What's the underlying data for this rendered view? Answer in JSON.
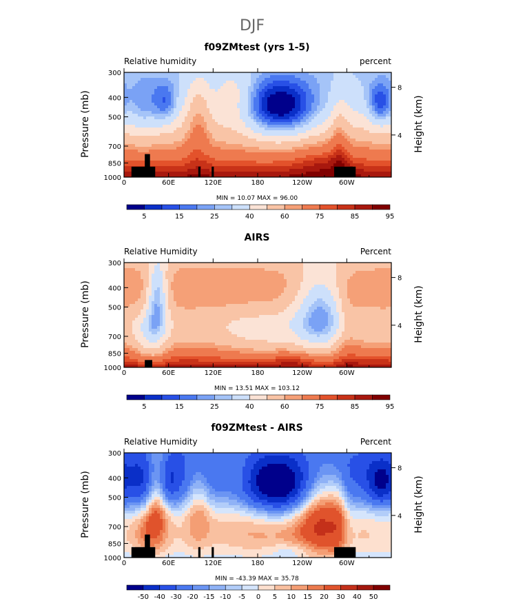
{
  "figure_title": "DJF",
  "chart_data": [
    {
      "type": "heatmap",
      "title": "f09ZMtest (yrs 1-5)",
      "left_label": "Relative humidity",
      "right_label": "percent",
      "ylabel": "Pressure (mb)",
      "y2label": "Height (km)",
      "x_ticks": [
        "0",
        "60E",
        "120E",
        "180",
        "120W",
        "60W"
      ],
      "y_ticks": [
        "300",
        "400",
        "500",
        "700",
        "850",
        "1000"
      ],
      "y2_ticks": [
        "8",
        "4"
      ],
      "stats": "MIN =  10.07   MAX =  96.00",
      "colorbar_labels": [
        "5",
        "15",
        "25",
        "40",
        "60",
        "75",
        "85",
        "95"
      ],
      "colorbar_colors": [
        "#00008b",
        "#0a2fc8",
        "#2850e6",
        "#4a78f0",
        "#7aa2f5",
        "#a5c4f8",
        "#cde0fb",
        "#fbe3d6",
        "#f9c4a6",
        "#f5a077",
        "#ee7a4f",
        "#e3522b",
        "#c83218",
        "#a8180e",
        "#800000"
      ],
      "ylim": [
        1000,
        300
      ],
      "xlim": [
        0,
        360
      ],
      "field": "rh_model"
    },
    {
      "type": "heatmap",
      "title": "AIRS",
      "left_label": "Relative Humidity",
      "right_label": "Percent",
      "ylabel": "Pressure (mb)",
      "y2label": "Height (km)",
      "x_ticks": [
        "0",
        "60E",
        "120E",
        "180",
        "120W",
        "60W"
      ],
      "y_ticks": [
        "300",
        "400",
        "500",
        "700",
        "850",
        "1000"
      ],
      "y2_ticks": [
        "8",
        "4"
      ],
      "stats": "MIN =  13.51   MAX = 103.12",
      "colorbar_labels": [
        "5",
        "15",
        "25",
        "40",
        "60",
        "75",
        "85",
        "95"
      ],
      "colorbar_colors": [
        "#00008b",
        "#0a2fc8",
        "#2850e6",
        "#4a78f0",
        "#7aa2f5",
        "#a5c4f8",
        "#cde0fb",
        "#fbe3d6",
        "#f9c4a6",
        "#f5a077",
        "#ee7a4f",
        "#e3522b",
        "#c83218",
        "#a8180e",
        "#800000"
      ],
      "ylim": [
        1000,
        300
      ],
      "xlim": [
        0,
        360
      ],
      "field": "rh_obs"
    },
    {
      "type": "heatmap",
      "title": "f09ZMtest - AIRS",
      "left_label": "Relative Humidity",
      "right_label": "Percent",
      "ylabel": "Pressure (mb)",
      "y2label": "Height (km)",
      "x_ticks": [
        "0",
        "60E",
        "120E",
        "180",
        "120W",
        "60W"
      ],
      "y_ticks": [
        "300",
        "400",
        "500",
        "700",
        "850",
        "1000"
      ],
      "y2_ticks": [
        "8",
        "4"
      ],
      "stats": "MIN = -43.39   MAX =  35.78",
      "colorbar_labels": [
        "-50",
        "-40",
        "-30",
        "-20",
        "-15",
        "-10",
        "-5",
        "0",
        "5",
        "10",
        "15",
        "20",
        "30",
        "40",
        "50"
      ],
      "colorbar_colors": [
        "#00008b",
        "#0a2fc8",
        "#2850e6",
        "#4a78f0",
        "#6b95f3",
        "#8fb2f6",
        "#b2cdf9",
        "#d5e5fc",
        "#fde0cf",
        "#f9c0a0",
        "#f49e74",
        "#ec7a4d",
        "#e0532c",
        "#c4301a",
        "#a3170e",
        "#800000"
      ],
      "ylim": [
        1000,
        300
      ],
      "xlim": [
        0,
        360
      ],
      "field": "rh_diff"
    }
  ]
}
